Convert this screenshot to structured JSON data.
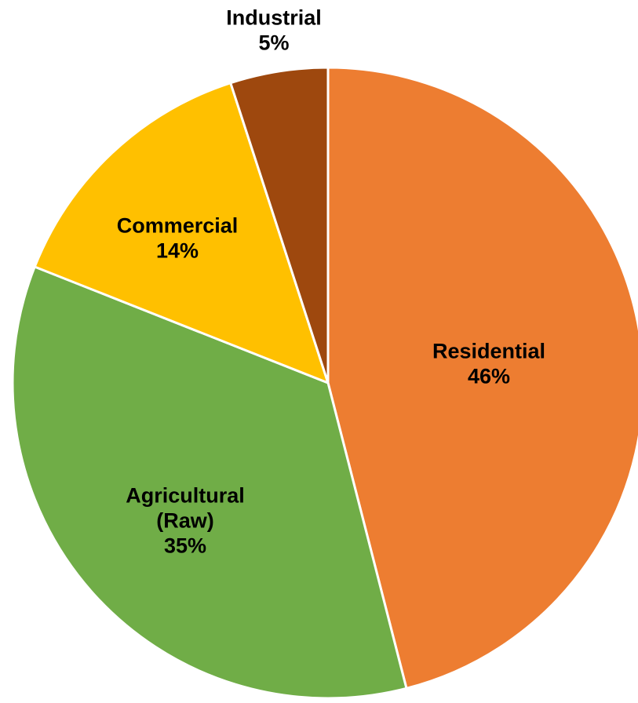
{
  "chart_data": {
    "type": "pie",
    "title": "",
    "start_angle_deg": 0,
    "direction": "clockwise",
    "show_legend": false,
    "slices": [
      {
        "label": "Residential",
        "label_lines": [
          "Residential"
        ],
        "value": 46,
        "value_label": "46%",
        "color": "#ED7D31"
      },
      {
        "label": "Agricultural (Raw)",
        "label_lines": [
          "Agricultural",
          "(Raw)"
        ],
        "value": 35,
        "value_label": "35%",
        "color": "#70AD47"
      },
      {
        "label": "Commercial",
        "label_lines": [
          "Commercial"
        ],
        "value": 14,
        "value_label": "14%",
        "color": "#FFC000"
      },
      {
        "label": "Industrial",
        "label_lines": [
          "Industrial"
        ],
        "value": 5,
        "value_label": "5%",
        "color": "#9E480E"
      }
    ]
  }
}
